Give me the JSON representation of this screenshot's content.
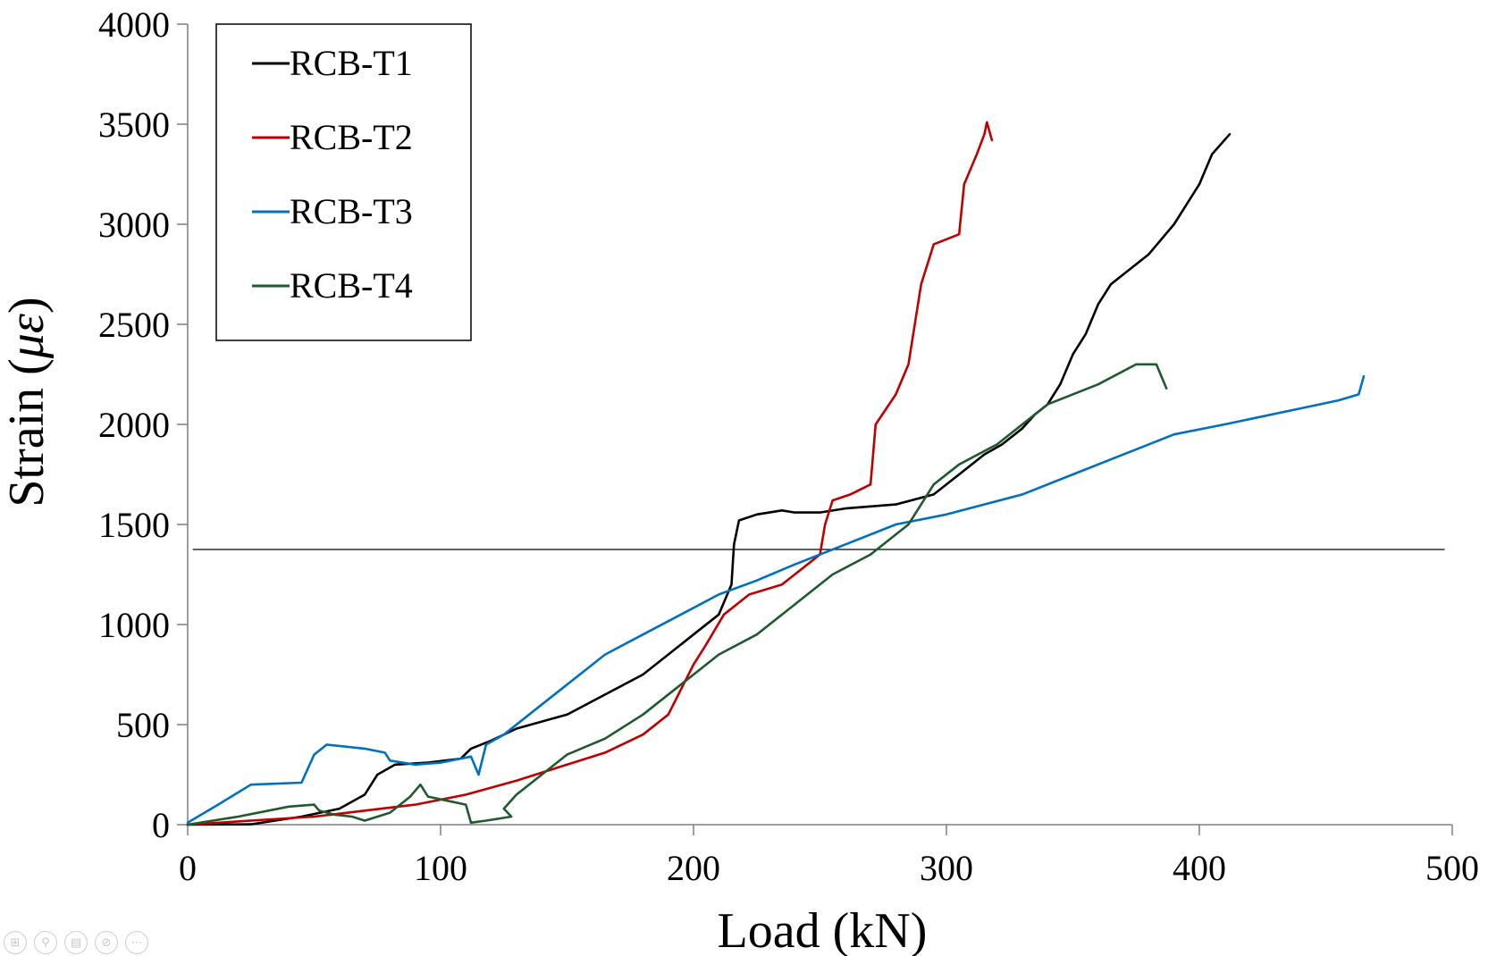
{
  "chart_data": {
    "type": "line",
    "title": "",
    "xlabel": "Load (kN)",
    "ylabel_main": "Strain (",
    "ylabel_symbol": "με",
    "ylabel_close": ")",
    "xlim": [
      0,
      500
    ],
    "ylim": [
      0,
      4000
    ],
    "xticks": [
      0,
      100,
      200,
      300,
      400,
      500
    ],
    "yticks": [
      0,
      500,
      1000,
      1500,
      2000,
      2500,
      3000,
      3500,
      4000
    ],
    "grid": false,
    "legend_position": "top-left",
    "reference_line": {
      "y": 1375,
      "x_range": [
        2,
        497
      ],
      "color": "#000000"
    },
    "series": [
      {
        "name": "RCB-T1",
        "color": "#000000",
        "points": [
          [
            0,
            0
          ],
          [
            25,
            2
          ],
          [
            45,
            40
          ],
          [
            60,
            80
          ],
          [
            70,
            150
          ],
          [
            75,
            250
          ],
          [
            82,
            300
          ],
          [
            95,
            310
          ],
          [
            108,
            330
          ],
          [
            112,
            380
          ],
          [
            120,
            420
          ],
          [
            130,
            480
          ],
          [
            150,
            550
          ],
          [
            165,
            650
          ],
          [
            180,
            750
          ],
          [
            190,
            850
          ],
          [
            200,
            950
          ],
          [
            210,
            1050
          ],
          [
            215,
            1200
          ],
          [
            216,
            1400
          ],
          [
            218,
            1520
          ],
          [
            225,
            1550
          ],
          [
            235,
            1570
          ],
          [
            240,
            1560
          ],
          [
            250,
            1560
          ],
          [
            260,
            1580
          ],
          [
            280,
            1600
          ],
          [
            295,
            1650
          ],
          [
            305,
            1750
          ],
          [
            315,
            1850
          ],
          [
            322,
            1900
          ],
          [
            330,
            1980
          ],
          [
            335,
            2050
          ],
          [
            340,
            2100
          ],
          [
            345,
            2200
          ],
          [
            350,
            2350
          ],
          [
            355,
            2450
          ],
          [
            360,
            2600
          ],
          [
            365,
            2700
          ],
          [
            370,
            2750
          ],
          [
            380,
            2850
          ],
          [
            390,
            3000
          ],
          [
            395,
            3100
          ],
          [
            400,
            3200
          ],
          [
            405,
            3350
          ],
          [
            412,
            3450
          ]
        ]
      },
      {
        "name": "RCB-T2",
        "color": "#c00000",
        "points": [
          [
            0,
            0
          ],
          [
            50,
            40
          ],
          [
            70,
            70
          ],
          [
            90,
            100
          ],
          [
            110,
            150
          ],
          [
            130,
            220
          ],
          [
            150,
            300
          ],
          [
            165,
            360
          ],
          [
            180,
            450
          ],
          [
            190,
            550
          ],
          [
            196,
            700
          ],
          [
            200,
            800
          ],
          [
            205,
            900
          ],
          [
            212,
            1050
          ],
          [
            222,
            1150
          ],
          [
            235,
            1200
          ],
          [
            245,
            1300
          ],
          [
            250,
            1350
          ],
          [
            252,
            1500
          ],
          [
            255,
            1620
          ],
          [
            262,
            1650
          ],
          [
            270,
            1700
          ],
          [
            272,
            2000
          ],
          [
            280,
            2150
          ],
          [
            285,
            2300
          ],
          [
            290,
            2700
          ],
          [
            295,
            2900
          ],
          [
            305,
            2950
          ],
          [
            307,
            3200
          ],
          [
            312,
            3350
          ],
          [
            315,
            3450
          ],
          [
            316,
            3510
          ],
          [
            318,
            3420
          ]
        ]
      },
      {
        "name": "RCB-T3",
        "color": "#0070c0",
        "points": [
          [
            0,
            10
          ],
          [
            12,
            100
          ],
          [
            25,
            200
          ],
          [
            45,
            210
          ],
          [
            50,
            350
          ],
          [
            55,
            400
          ],
          [
            70,
            380
          ],
          [
            78,
            360
          ],
          [
            80,
            320
          ],
          [
            90,
            300
          ],
          [
            100,
            310
          ],
          [
            112,
            340
          ],
          [
            115,
            250
          ],
          [
            118,
            400
          ],
          [
            125,
            450
          ],
          [
            135,
            550
          ],
          [
            150,
            700
          ],
          [
            165,
            850
          ],
          [
            180,
            950
          ],
          [
            195,
            1050
          ],
          [
            210,
            1150
          ],
          [
            225,
            1220
          ],
          [
            240,
            1300
          ],
          [
            260,
            1400
          ],
          [
            280,
            1500
          ],
          [
            300,
            1550
          ],
          [
            330,
            1650
          ],
          [
            350,
            1750
          ],
          [
            370,
            1850
          ],
          [
            390,
            1950
          ],
          [
            410,
            2000
          ],
          [
            440,
            2080
          ],
          [
            455,
            2120
          ],
          [
            463,
            2150
          ],
          [
            465,
            2240
          ]
        ]
      },
      {
        "name": "RCB-T4",
        "color": "#1e5a2e",
        "points": [
          [
            0,
            0
          ],
          [
            20,
            40
          ],
          [
            40,
            90
          ],
          [
            50,
            100
          ],
          [
            52,
            70
          ],
          [
            58,
            50
          ],
          [
            65,
            40
          ],
          [
            70,
            20
          ],
          [
            80,
            60
          ],
          [
            88,
            140
          ],
          [
            92,
            200
          ],
          [
            95,
            140
          ],
          [
            110,
            100
          ],
          [
            112,
            10
          ],
          [
            118,
            20
          ],
          [
            128,
            40
          ],
          [
            125,
            80
          ],
          [
            130,
            150
          ],
          [
            140,
            250
          ],
          [
            150,
            350
          ],
          [
            165,
            430
          ],
          [
            180,
            550
          ],
          [
            195,
            700
          ],
          [
            210,
            850
          ],
          [
            225,
            950
          ],
          [
            240,
            1100
          ],
          [
            255,
            1250
          ],
          [
            270,
            1350
          ],
          [
            285,
            1500
          ],
          [
            295,
            1700
          ],
          [
            305,
            1800
          ],
          [
            320,
            1900
          ],
          [
            330,
            2000
          ],
          [
            340,
            2100
          ],
          [
            360,
            2200
          ],
          [
            375,
            2300
          ],
          [
            383,
            2300
          ],
          [
            387,
            2180
          ]
        ]
      }
    ]
  },
  "toolbar": {
    "icons": [
      "layout-icon",
      "zoom-icon",
      "notes-icon",
      "video-off-icon",
      "more-icon"
    ],
    "glyphs": [
      "⊞",
      "⚲",
      "▤",
      "⊘",
      "⋯"
    ]
  }
}
